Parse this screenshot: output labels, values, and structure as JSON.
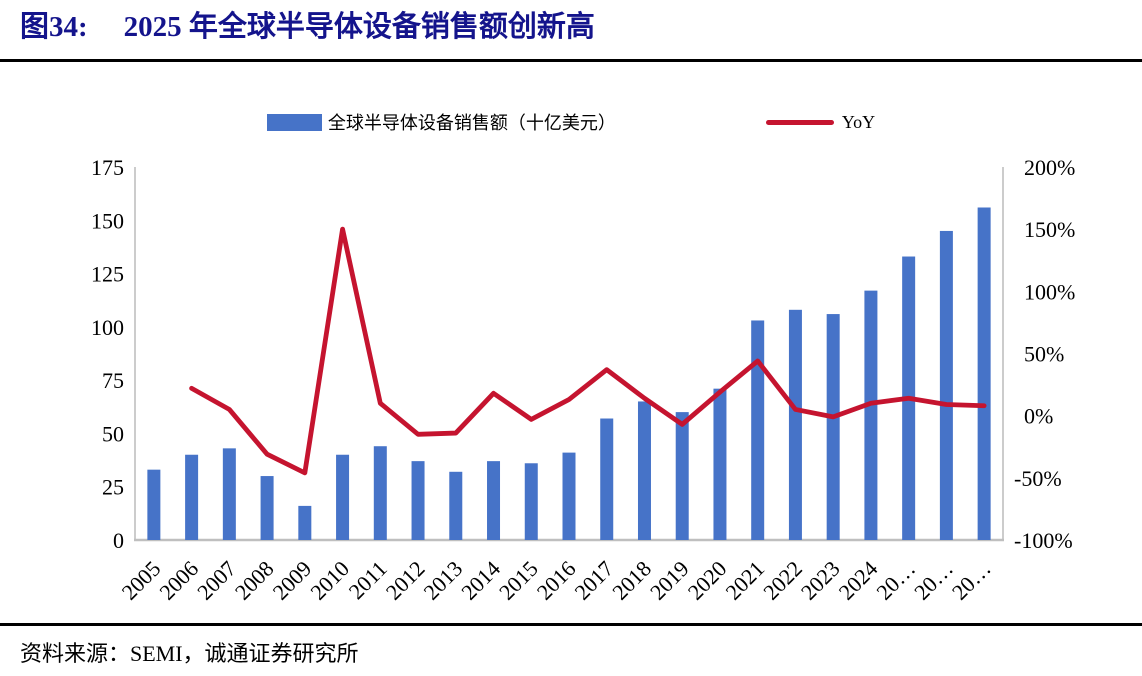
{
  "title": {
    "figure_label": "图34:",
    "text": "2025 年全球半导体设备销售额创新高"
  },
  "legend": {
    "bar": {
      "label": "全球半导体设备销售额（十亿美元）",
      "color": "#4673C8"
    },
    "line": {
      "label": "YoY",
      "color": "#C5142F"
    }
  },
  "source_note": "资料来源：SEMI，诚通证券研究所",
  "colors": {
    "bar": "#4673C8",
    "line": "#C5142F",
    "axis": "#BFBFBF",
    "title": "#14148C",
    "text": "#000000"
  },
  "chart_data": {
    "type": "bar+line",
    "title": "2025 年全球半导体设备销售额创新高",
    "categories": [
      "2005",
      "2006",
      "2007",
      "2008",
      "2009",
      "2010",
      "2011",
      "2012",
      "2013",
      "2014",
      "2015",
      "2016",
      "2017",
      "2018",
      "2019",
      "2020",
      "2021",
      "2022",
      "2023",
      "2024",
      "20…",
      "20…",
      "20…"
    ],
    "series": [
      {
        "name": "全球半导体设备销售额（十亿美元）",
        "type": "bar",
        "axis": "left",
        "color": "#4673C8",
        "values": [
          33,
          40,
          43,
          30,
          16,
          40,
          44,
          37,
          32,
          37,
          36,
          41,
          57,
          65,
          60,
          71,
          103,
          108,
          106,
          117,
          133,
          145,
          156
        ]
      },
      {
        "name": "YoY",
        "type": "line",
        "axis": "right",
        "color": "#C5142F",
        "values": [
          null,
          22,
          5,
          -31,
          -46,
          150,
          10,
          -15,
          -14,
          18,
          -3,
          13,
          37,
          14,
          -7,
          19,
          44,
          5,
          -1,
          10,
          14,
          9,
          8
        ]
      }
    ],
    "left_axis": {
      "min": 0,
      "max": 175,
      "ticks": [
        0,
        25,
        50,
        75,
        100,
        125,
        150,
        175
      ]
    },
    "right_axis": {
      "min": -100,
      "max": 200,
      "ticks": [
        200,
        150,
        100,
        50,
        0,
        -50,
        -100
      ],
      "unit": "%"
    },
    "grid": false,
    "legend_position": "top",
    "xlabel": "",
    "ylabel": ""
  }
}
